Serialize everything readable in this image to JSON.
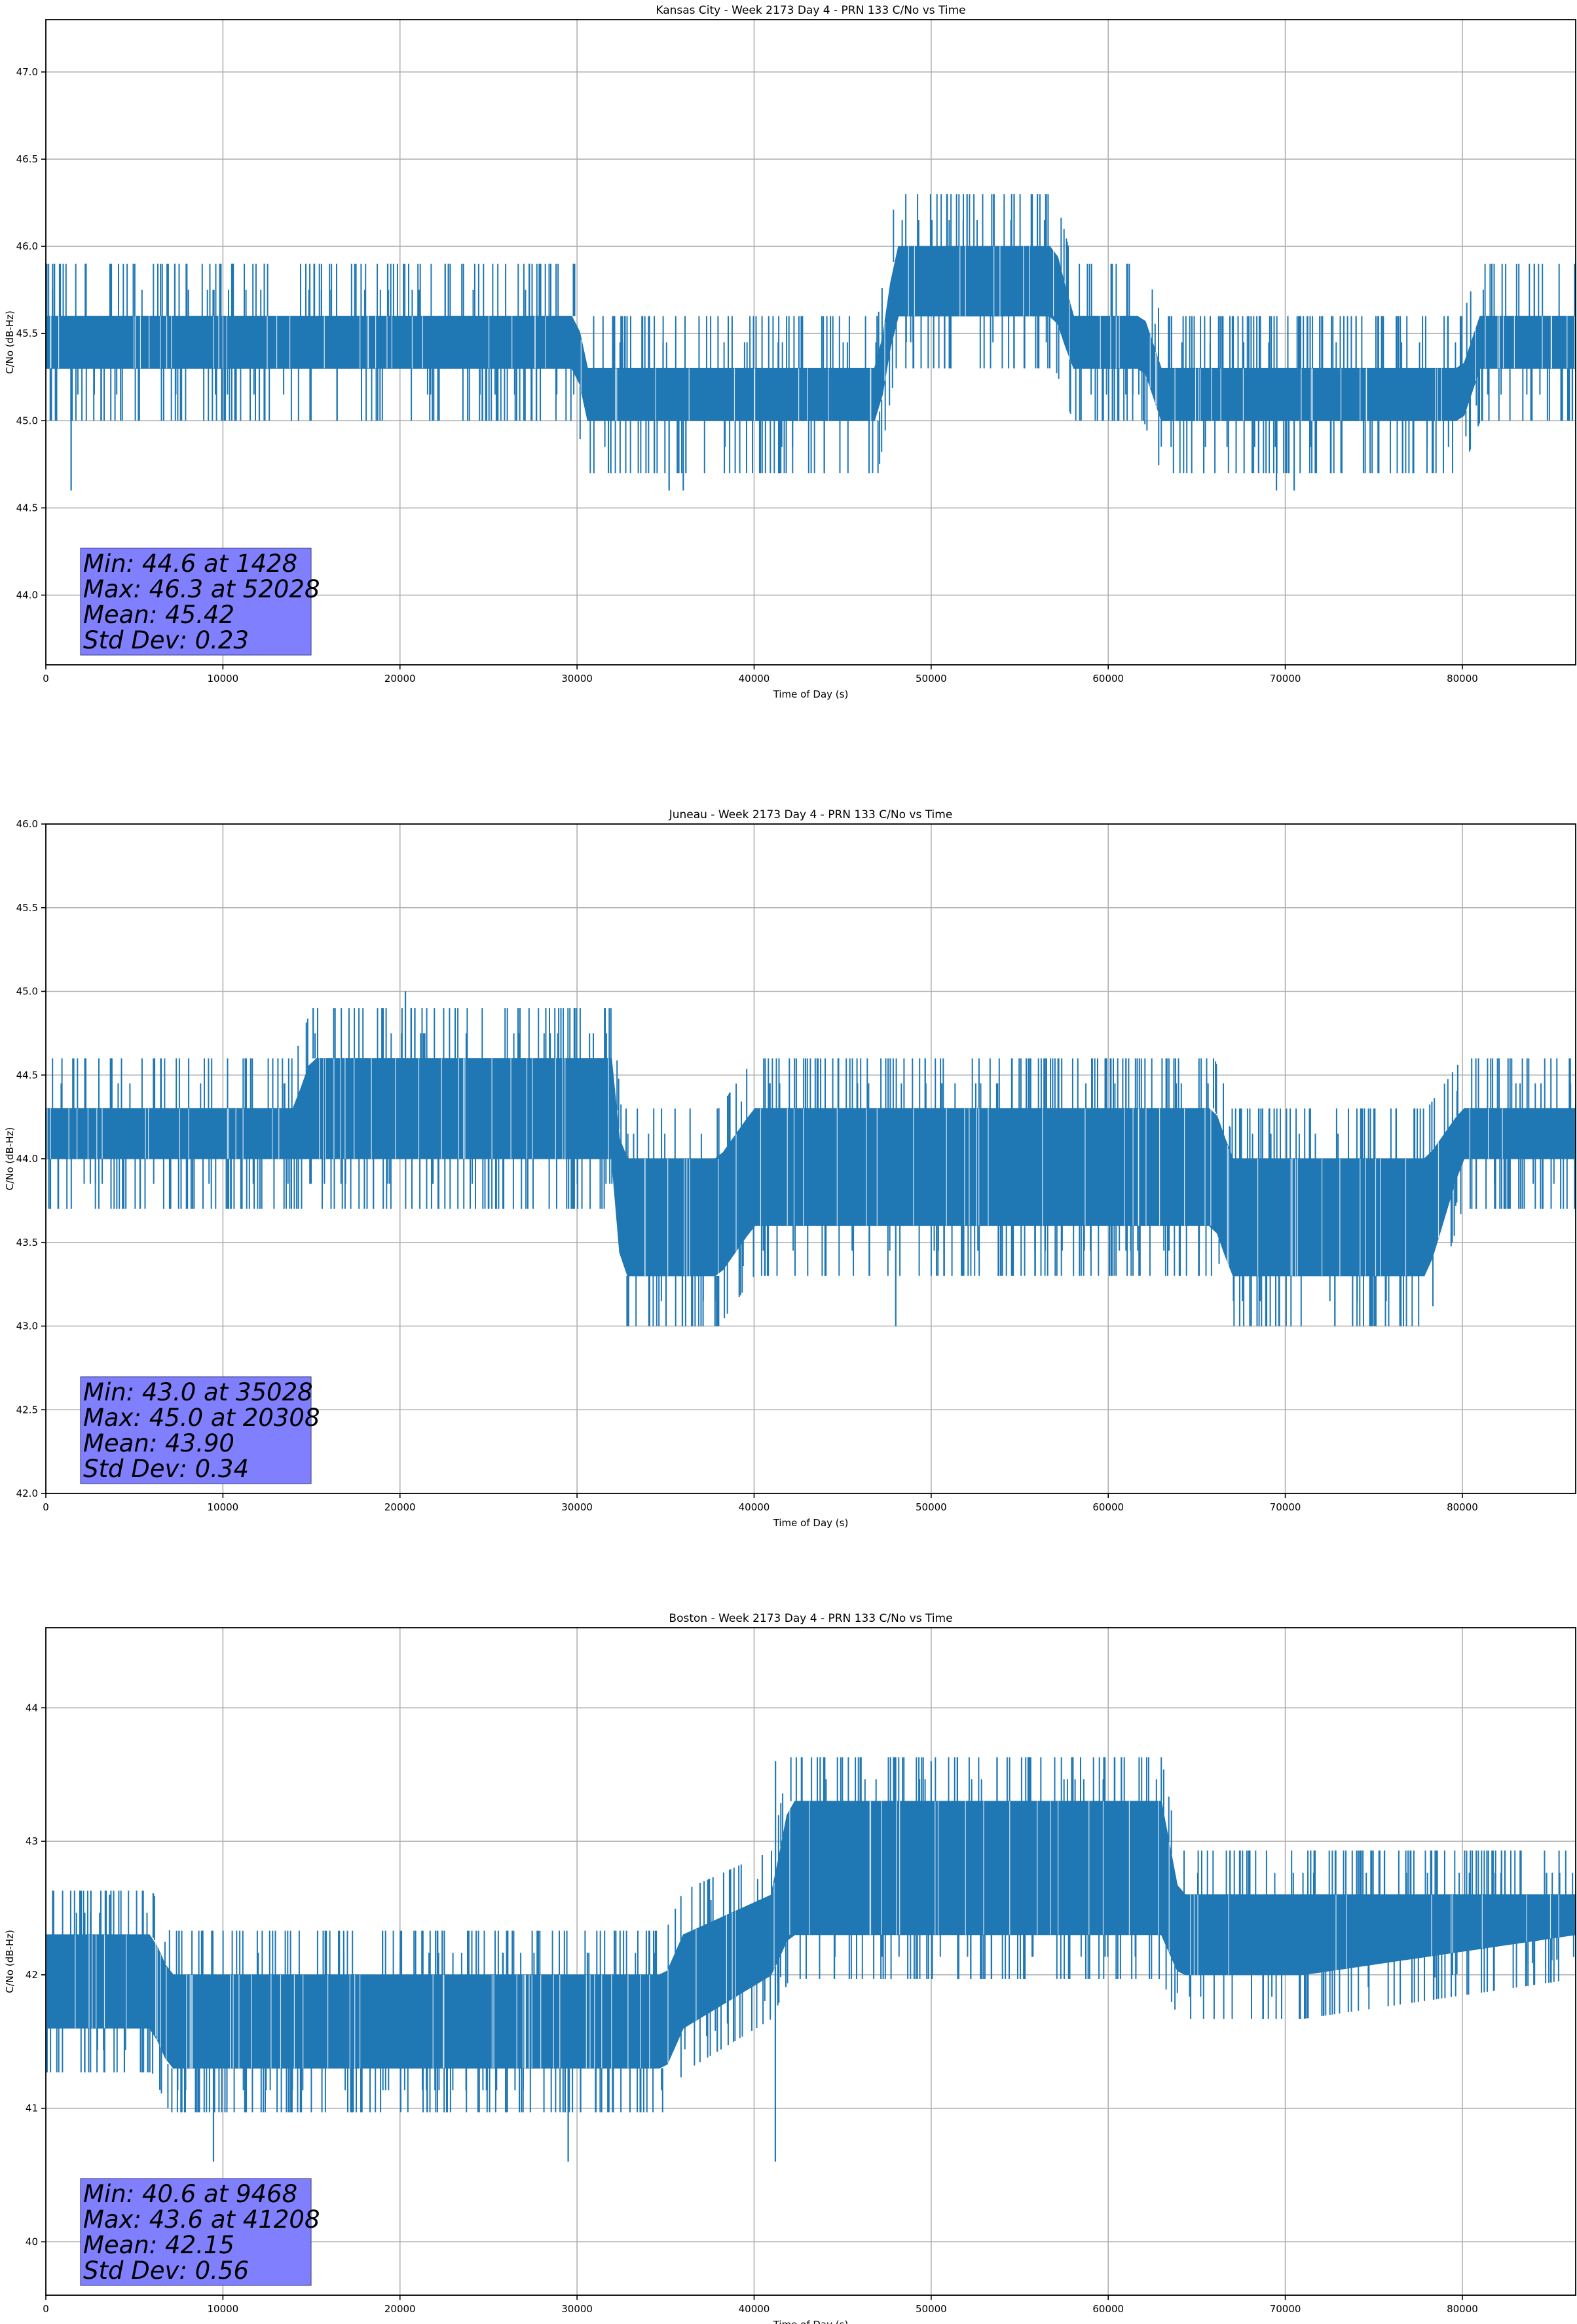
{
  "chart_data": [
    {
      "type": "line",
      "title": "Kansas City - Week 2173 Day 4 - PRN 133 C/No vs Time",
      "xlabel": "Time of Day (s)",
      "ylabel": "C/No (dB-Hz)",
      "xlim": [
        0,
        86400
      ],
      "ylim": [
        43.6,
        47.3
      ],
      "xticks": [
        0,
        10000,
        20000,
        30000,
        40000,
        50000,
        60000,
        70000,
        80000
      ],
      "yticks": [
        44.0,
        44.5,
        45.0,
        45.5,
        46.0,
        46.5,
        47.0
      ],
      "ytick_decimals": 1,
      "grid": true,
      "line_color": "#1f77b4",
      "series": [
        {
          "x": [
            0,
            7000,
            8000,
            30000,
            30500,
            47000,
            48000,
            57000,
            58000,
            62000,
            63000,
            80000,
            81000,
            86400
          ],
          "y": [
            45.45,
            45.45,
            45.45,
            45.45,
            45.15,
            45.15,
            45.8,
            45.8,
            45.45,
            45.45,
            45.15,
            45.15,
            45.45,
            45.45
          ],
          "low": [
            45.3,
            45.3,
            45.3,
            45.3,
            45.0,
            45.0,
            45.6,
            45.6,
            45.3,
            45.3,
            45.0,
            45.0,
            45.3,
            45.3
          ],
          "high": [
            45.6,
            45.6,
            45.6,
            45.6,
            45.3,
            45.3,
            46.0,
            46.0,
            45.6,
            45.6,
            45.3,
            45.3,
            45.6,
            45.6
          ]
        }
      ],
      "spikes": [
        {
          "x": 1428,
          "y": 44.6
        },
        {
          "x": 35200,
          "y": 44.6
        },
        {
          "x": 36000,
          "y": 44.6
        },
        {
          "x": 69500,
          "y": 44.6
        },
        {
          "x": 70500,
          "y": 44.6
        },
        {
          "x": 52028,
          "y": 46.3
        },
        {
          "x": 56000,
          "y": 46.3
        }
      ],
      "stats": {
        "lines": [
          "Min: 44.6 at 1428",
          "Max: 46.3 at 52028",
          "Mean: 45.42",
          "Std Dev: 0.23"
        ],
        "box_color": "#8080ff"
      }
    },
    {
      "type": "line",
      "title": "Juneau - Week 2173 Day 4 - PRN 133 C/No vs Time",
      "xlabel": "Time of Day (s)",
      "ylabel": "C/No (dB-Hz)",
      "xlim": [
        0,
        86400
      ],
      "ylim": [
        42.0,
        46.0
      ],
      "xticks": [
        0,
        10000,
        20000,
        30000,
        40000,
        50000,
        60000,
        70000,
        80000
      ],
      "yticks": [
        42.0,
        42.5,
        43.0,
        43.5,
        44.0,
        44.5,
        45.0,
        45.5,
        46.0
      ],
      "ytick_decimals": 1,
      "grid": true,
      "line_color": "#1f77b4",
      "series": [
        {
          "x": [
            0,
            14000,
            15000,
            32000,
            32500,
            38000,
            40000,
            66000,
            67000,
            78000,
            80000,
            86400
          ],
          "y": [
            44.15,
            44.15,
            44.35,
            44.35,
            43.8,
            43.8,
            43.8,
            43.8,
            43.6,
            43.6,
            44.15,
            44.15
          ],
          "low": [
            44.0,
            44.0,
            44.0,
            44.0,
            43.3,
            43.3,
            43.6,
            43.6,
            43.3,
            43.3,
            44.0,
            44.0
          ],
          "high": [
            44.3,
            44.3,
            44.6,
            44.6,
            44.0,
            44.0,
            44.3,
            44.3,
            44.0,
            44.0,
            44.3,
            44.3
          ]
        }
      ],
      "spikes": [
        {
          "x": 20308,
          "y": 45.0
        },
        {
          "x": 35028,
          "y": 43.0
        },
        {
          "x": 48000,
          "y": 43.0
        },
        {
          "x": 57200,
          "y": 44.6
        },
        {
          "x": 68000,
          "y": 43.0
        },
        {
          "x": 73800,
          "y": 43.0
        }
      ],
      "stats": {
        "lines": [
          "Min: 43.0 at 35028",
          "Max: 45.0 at 20308",
          "Mean: 43.90",
          "Std Dev: 0.34"
        ],
        "box_color": "#8080ff"
      }
    },
    {
      "type": "line",
      "title": "Boston - Week 2173 Day 4 - PRN 133 C/No vs Time",
      "xlabel": "Time of Day (s)",
      "ylabel": "C/No (dB-Hz)",
      "xlim": [
        0,
        86400
      ],
      "ylim": [
        39.6,
        44.6
      ],
      "xticks": [
        0,
        10000,
        20000,
        30000,
        40000,
        50000,
        60000,
        70000,
        80000
      ],
      "yticks": [
        40,
        41,
        42,
        43,
        44
      ],
      "ytick_decimals": 0,
      "grid": true,
      "line_color": "#1f77b4",
      "series": [
        {
          "x": [
            0,
            6000,
            7000,
            35000,
            36000,
            41000,
            42000,
            63000,
            64000,
            70000,
            71000,
            86400
          ],
          "y": [
            41.95,
            41.95,
            41.6,
            41.6,
            42.1,
            42.4,
            42.8,
            42.8,
            42.45,
            42.3,
            42.3,
            42.4
          ],
          "low": [
            41.6,
            41.6,
            41.3,
            41.3,
            41.6,
            42.0,
            42.3,
            42.3,
            42.0,
            42.0,
            42.0,
            42.3
          ],
          "high": [
            42.3,
            42.3,
            42.0,
            42.0,
            42.3,
            42.6,
            43.3,
            43.3,
            42.6,
            42.6,
            42.6,
            42.6
          ]
        }
      ],
      "spikes": [
        {
          "x": 9468,
          "y": 40.6
        },
        {
          "x": 41208,
          "y": 43.6
        },
        {
          "x": 41200,
          "y": 40.6
        },
        {
          "x": 50000,
          "y": 43.6
        },
        {
          "x": 29500,
          "y": 40.6
        },
        {
          "x": 3600,
          "y": 42.6
        }
      ],
      "stats": {
        "lines": [
          "Min: 40.6 at 9468",
          "Max: 43.6 at 41208",
          "Mean: 42.15",
          "Std Dev: 0.56"
        ],
        "box_color": "#8080ff"
      }
    }
  ]
}
